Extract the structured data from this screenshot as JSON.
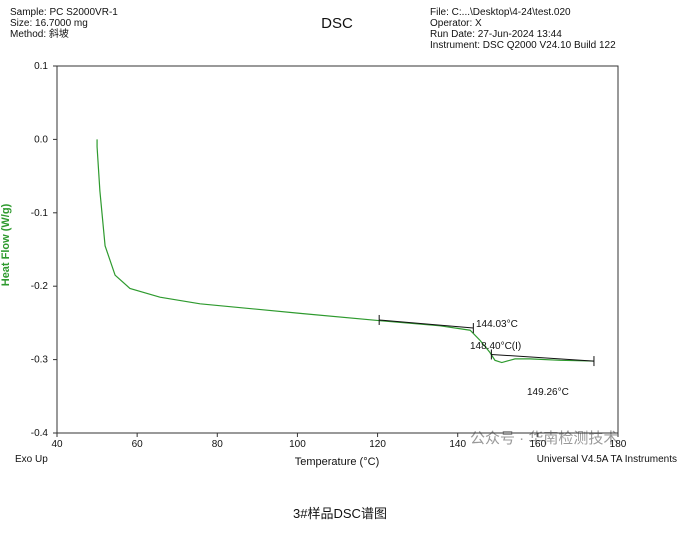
{
  "chart_data": {
    "type": "line",
    "title": "DSC",
    "header_left": [
      "Sample: PC S2000VR-1",
      "Size: 16.7000 mg",
      "Method: 斜坡"
    ],
    "header_right": [
      "File: C:...\\Desktop\\4-24\\test.020",
      "Operator: X",
      "Run Date: 27-Jun-2024 13:44",
      "Instrument: DSC Q2000 V24.10 Build 122"
    ],
    "xlabel": "Temperature (°C)",
    "ylabel": "Heat Flow (W/g)",
    "xlim": [
      40,
      180
    ],
    "xticks": [
      40,
      60,
      80,
      100,
      120,
      140,
      160,
      180
    ],
    "ylim": [
      -0.4,
      0.1
    ],
    "yticks": [
      {
        "value": -0.4,
        "label": "-0.4"
      },
      {
        "value": -0.3,
        "label": "-0.3"
      },
      {
        "value": -0.2,
        "label": "-0.2"
      },
      {
        "value": -0.1,
        "label": "-0.1"
      },
      {
        "value": 0,
        "label": "0.0"
      },
      {
        "value": 0.1,
        "label": "0.1"
      }
    ],
    "series": [
      {
        "color": "#2e9a2e",
        "x": [
          50.0,
          50.0,
          50.7,
          52.0,
          54.5,
          58.2,
          65.7,
          75.7,
          100.7,
          120.6,
          135.6,
          143.1,
          145.6,
          148.0,
          149.3,
          151.0,
          154.3,
          158.0,
          165.6,
          174.0
        ],
        "values": [
          0.0,
          -0.01,
          -0.07,
          -0.145,
          -0.185,
          -0.203,
          -0.215,
          -0.224,
          -0.237,
          -0.247,
          -0.254,
          -0.26,
          -0.274,
          -0.29,
          -0.301,
          -0.304,
          -0.299,
          -0.299,
          -0.301,
          -0.302
        ]
      }
    ],
    "analysis_lines": [
      {
        "x": [
          120.4,
          143.9
        ],
        "y": [
          -0.246,
          -0.257
        ]
      },
      {
        "x": [
          148.4,
          174.0
        ],
        "y": [
          -0.293,
          -0.302
        ]
      }
    ],
    "annotations": [
      "144.03°C",
      "148.40°C(I)",
      "149.26°C"
    ],
    "footer_left": "Exo Up",
    "footer_right": "Universal V4.5A TA Instruments",
    "watermark": "公众号 · 华南检测技术",
    "caption": "3#样品DSC谱图"
  }
}
